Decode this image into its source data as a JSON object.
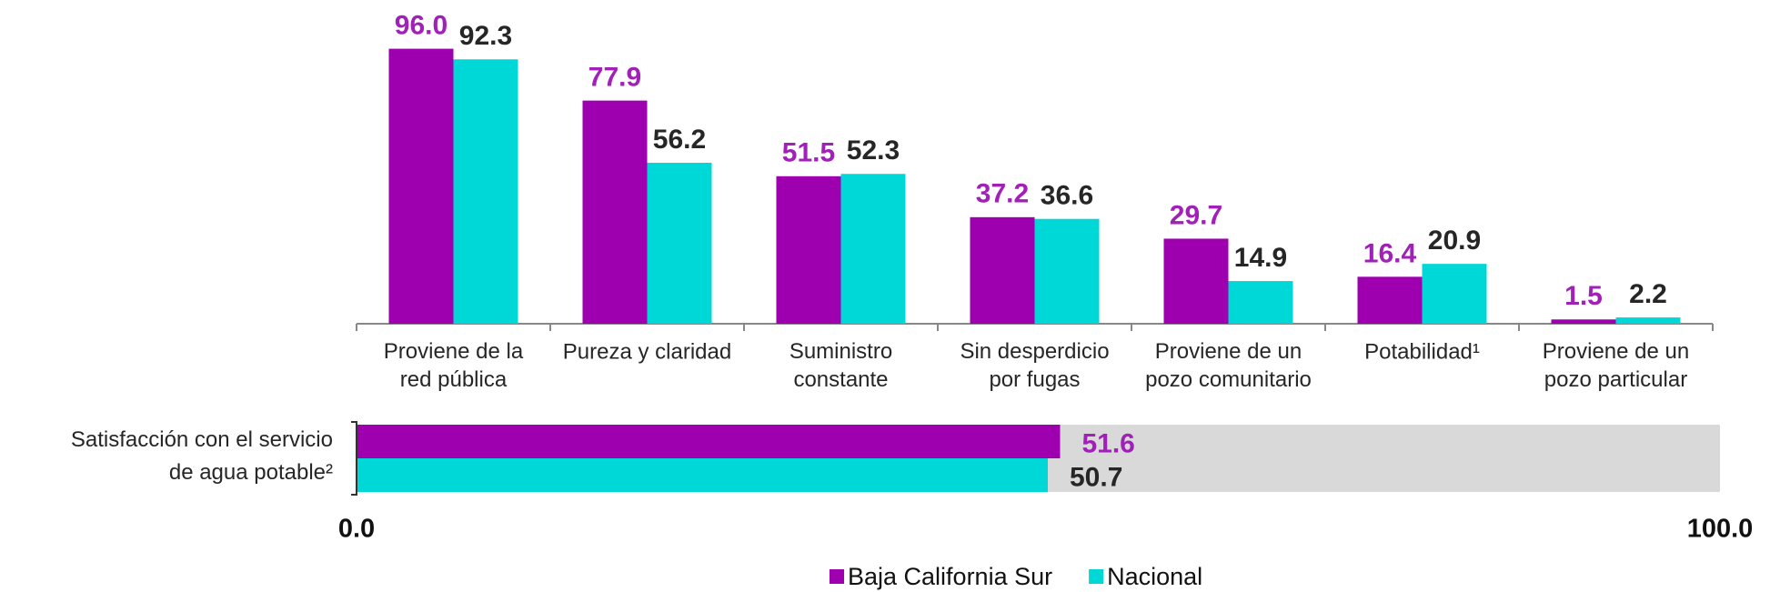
{
  "chart_data": [
    {
      "type": "bar",
      "categories": [
        "Proviene de la\nred pública",
        "Pureza y claridad",
        "Suministro\nconstante",
        "Sin desperdicio\npor fugas",
        "Proviene de un\npozo comunitario",
        "Potabilidad¹",
        "Proviene de un\npozo particular"
      ],
      "series": [
        {
          "name": "Baja California Sur",
          "color": "#9e00b0",
          "label_color": "#a020b8",
          "values": [
            96.0,
            77.9,
            51.5,
            37.2,
            29.7,
            16.4,
            1.5
          ],
          "value_labels": [
            "96.0",
            "77.9",
            "51.5",
            "37.2",
            "29.7",
            "16.4",
            "1.5"
          ]
        },
        {
          "name": "Nacional",
          "color": "#00d8d8",
          "label_color": "#262626",
          "values": [
            92.3,
            56.2,
            52.3,
            36.6,
            14.9,
            20.9,
            2.2
          ],
          "value_labels": [
            "92.3",
            "56.2",
            "52.3",
            "36.6",
            "14.9",
            "20.9",
            "2.2"
          ]
        }
      ],
      "ylim": [
        0,
        100
      ],
      "legend": "bottom"
    },
    {
      "type": "hbar",
      "categories": [
        "Satisfacción con el servicio\nde agua potable²"
      ],
      "series": [
        {
          "color": "#9e00b0",
          "label_color": "#a020b8",
          "values": [
            51.6
          ],
          "value_labels": [
            "51.6"
          ]
        },
        {
          "color": "#00d8d8",
          "label_color": "#262626",
          "values": [
            50.7
          ],
          "value_labels": [
            "50.7"
          ]
        }
      ],
      "track_color": "#d9d9d9",
      "xlim": [
        0,
        100
      ],
      "xticks": [
        {
          "value": 0,
          "label": "0.0"
        },
        {
          "value": 100,
          "label": "100.0"
        }
      ]
    }
  ]
}
